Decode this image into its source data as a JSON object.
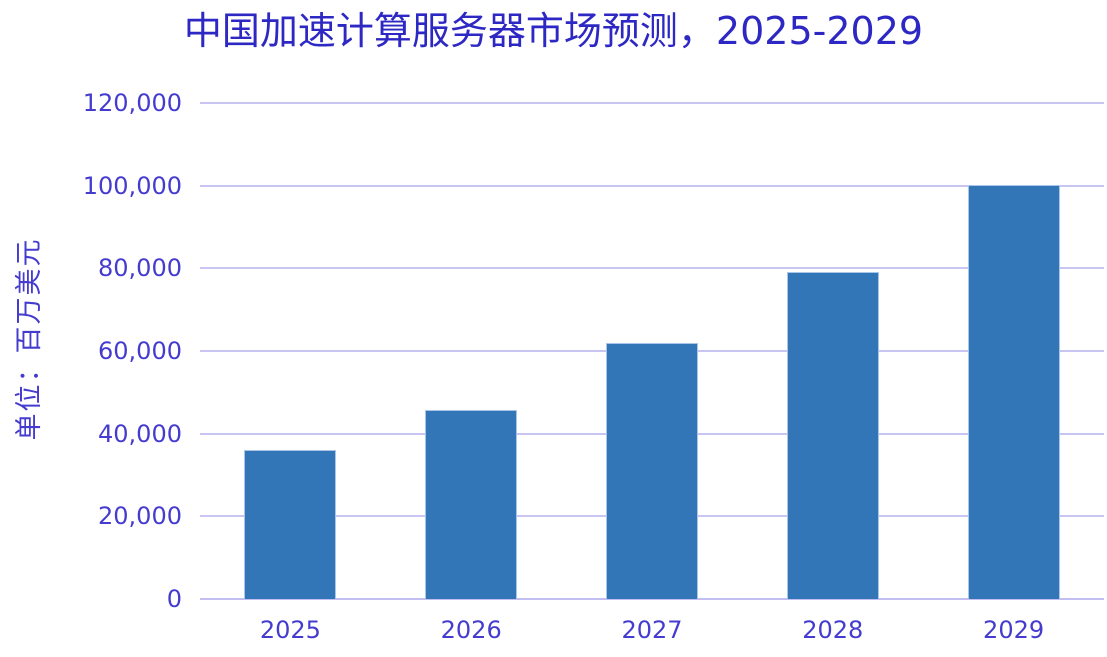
{
  "chart_data": {
    "type": "bar",
    "title": "中国加速计算服务器市场预测，2025-2029",
    "ylabel": "单位：百万美元",
    "xlabel": "",
    "categories": [
      "2025",
      "2026",
      "2027",
      "2028",
      "2029"
    ],
    "values": [
      36100,
      45800,
      61900,
      79000,
      100200
    ],
    "ylim": [
      0,
      120000
    ],
    "ytick_interval": 20000,
    "ytick_labels": [
      "0",
      "20,000",
      "40,000",
      "60,000",
      "80,000",
      "100,000",
      "120,000"
    ],
    "grid": true,
    "legend": false,
    "colors": {
      "bar": "#3276B7",
      "bar_border": "#A9C6E8",
      "gridline": "#C8C5F3",
      "axis_line": "#C3BEF1",
      "title_text": "#2D28C4",
      "tick_text": "#453CCF"
    }
  }
}
